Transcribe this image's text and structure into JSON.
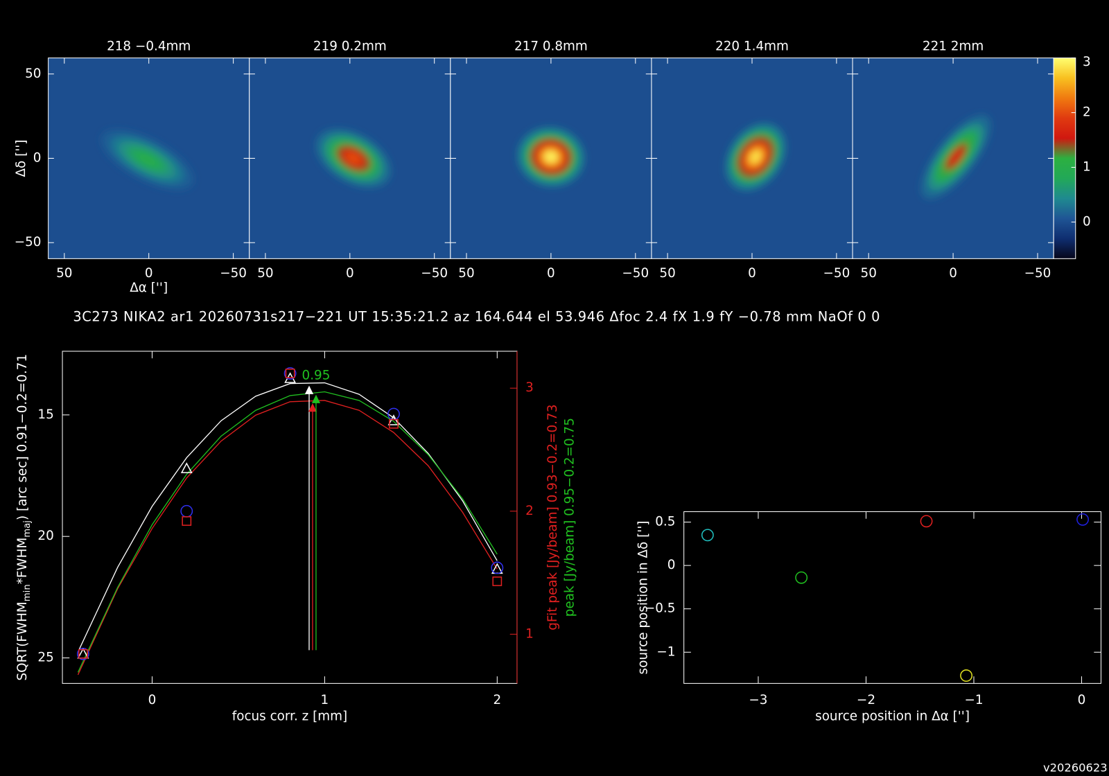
{
  "info": "3C273 NIKA2 ar1 20260731s217−221 UT 15:35:21.2 az 164.644 el 53.946 Δfoc 2.4 fX 1.9 fY −0.78 mm NaOf 0 0",
  "version": "v20260623",
  "chart_data": [
    {
      "type": "image",
      "titles": [
        "218 −0.4mm",
        "219 0.2mm",
        "217 0.8mm",
        "220 1.4mm",
        "221 2mm"
      ],
      "xlabel": "Δα ['']",
      "ylabel": "Δδ ['']",
      "xlim": [
        59.5,
        -59.5
      ],
      "ylim": [
        -59.5,
        59.5
      ],
      "xticks": [
        50,
        0,
        {
          "value": -50,
          "label": "−50"
        }
      ],
      "yticks": [
        50,
        0,
        {
          "value": -50,
          "label": "−50"
        }
      ],
      "peaks": [
        1.0,
        2.0,
        2.9,
        2.8,
        1.7
      ],
      "clim": [
        -0.67,
        3
      ],
      "cticks": [
        0,
        1,
        2,
        3
      ],
      "colormap": [
        "#06061a",
        "#0f2e70",
        "#1f5595",
        "#1f8a90",
        "#22a858",
        "#2cb040",
        "#d01810",
        "#e03a10",
        "#f07a10",
        "#f8c020",
        "#ffff70"
      ]
    },
    {
      "type": "scatter",
      "xlabel": "focus corr. z [mm]",
      "ylabel": [
        "SQRT(FWHM",
        "min",
        "*FWHM",
        "maj",
        ") [arc sec] 0.91−0.2=0.71"
      ],
      "y2labels": [
        {
          "text": "gFit peak [Jy/beam] 0.93−0.2=0.73",
          "color": "#e02020"
        },
        {
          "text": "peak [Jy/beam] 0.95−0.2=0.75",
          "color": "#20c020"
        }
      ],
      "xlim": [
        -0.52,
        2.115
      ],
      "xticks": [
        0,
        1,
        2
      ],
      "ylim": [
        26.05,
        12.38
      ],
      "yticks": [
        15,
        20,
        25
      ],
      "y2lim": [
        0.6,
        3.3
      ],
      "y2ticks": [
        1,
        2,
        3
      ],
      "y2color": "#e02020",
      "x": [
        -0.4,
        0.2,
        0.8,
        1.4,
        2
      ],
      "series": [
        {
          "marker": "triangle",
          "color": "#ffffff",
          "values": [
            24.83,
            17.2,
            13.49,
            15.23,
            21.34
          ]
        },
        {
          "marker": "circle",
          "color": "#3030f0",
          "axis": "y2",
          "values": [
            0.84,
            2.0,
            3.12,
            2.79,
            1.54
          ]
        },
        {
          "marker": "square",
          "color": "#e02020",
          "axis": "y2",
          "values": [
            0.84,
            1.92,
            3.12,
            2.71,
            1.43
          ]
        }
      ],
      "fits": [
        {
          "color": "#ffffff",
          "x": [
            -0.43,
            -0.2,
            0,
            0.2,
            0.4,
            0.6,
            0.8,
            1,
            1.2,
            1.4,
            1.6,
            1.8,
            2
          ],
          "values": [
            24.76,
            21.27,
            18.76,
            16.76,
            15.24,
            14.23,
            13.71,
            13.68,
            14.15,
            15.12,
            16.58,
            18.54,
            21.0
          ]
        },
        {
          "color": "#e02020",
          "axis": "y2",
          "x": [
            -0.43,
            -0.2,
            0,
            0.2,
            0.4,
            0.6,
            0.8,
            1,
            1.2,
            1.4,
            1.6,
            1.8,
            2
          ],
          "values": [
            0.67,
            1.37,
            1.86,
            2.27,
            2.57,
            2.78,
            2.89,
            2.9,
            2.82,
            2.64,
            2.37,
            1.99,
            1.53
          ]
        },
        {
          "color": "#20c020",
          "axis": "y2",
          "x": [
            -0.43,
            -0.2,
            0,
            0.2,
            0.4,
            0.6,
            0.8,
            1,
            1.2,
            1.4,
            1.6,
            1.8,
            2
          ],
          "values": [
            0.69,
            1.38,
            1.89,
            2.3,
            2.61,
            2.82,
            2.94,
            2.97,
            2.9,
            2.73,
            2.46,
            2.1,
            1.65
          ]
        }
      ],
      "best_focus": [
        {
          "value": 0.91,
          "color": "#ffffff"
        },
        {
          "value": 0.93,
          "color": "#e02020"
        },
        {
          "value": 0.95,
          "color": "#20c020",
          "show_label": true
        }
      ]
    },
    {
      "type": "scatter",
      "xlabel": "source position in Δα ['']",
      "ylabel": "source position in Δδ ['']",
      "xlim": [
        -3.69,
        0.18
      ],
      "xticks": [
        {
          "value": -3,
          "label": "−3"
        },
        {
          "value": -2,
          "label": "−2"
        },
        {
          "value": -1,
          "label": "−1"
        },
        0
      ],
      "ylim": [
        -1.36,
        0.62
      ],
      "yticks": [
        0.5,
        0,
        {
          "value": -0.5,
          "label": "−0.5"
        },
        {
          "value": -1,
          "label": "−1"
        }
      ],
      "x": [
        -3.47,
        -2.6,
        -1.44,
        0.01,
        -1.07
      ],
      "series": [
        {
          "marker": "circle",
          "colors": [
            "#20c0c0",
            "#20c020",
            "#e02020",
            "#2020e0",
            "#e0e020"
          ],
          "values": [
            0.35,
            -0.14,
            0.51,
            0.53,
            -1.27
          ]
        }
      ]
    }
  ]
}
